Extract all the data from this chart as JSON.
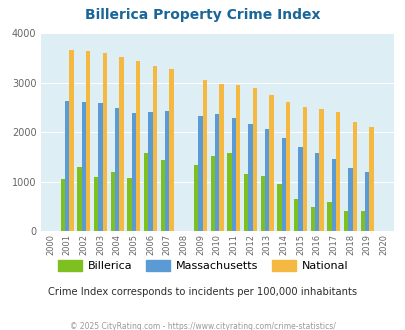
{
  "title": "Billerica Property Crime Index",
  "subtitle": "Crime Index corresponds to incidents per 100,000 inhabitants",
  "copyright": "© 2025 CityRating.com - https://www.cityrating.com/crime-statistics/",
  "years": [
    "2000",
    "2001",
    "2002",
    "2003",
    "2004",
    "2005",
    "2006",
    "2007",
    "2008",
    "2009",
    "2010",
    "2011",
    "2012",
    "2013",
    "2014",
    "2015",
    "2016",
    "2017",
    "2018",
    "2019",
    "2020"
  ],
  "billerica": [
    0,
    1050,
    1300,
    1100,
    1200,
    1080,
    1580,
    1440,
    0,
    1340,
    1510,
    1570,
    1160,
    1110,
    940,
    640,
    480,
    580,
    400,
    400,
    0
  ],
  "massachusetts": [
    0,
    2630,
    2600,
    2580,
    2490,
    2390,
    2410,
    2420,
    0,
    2330,
    2370,
    2280,
    2160,
    2060,
    1870,
    1700,
    1570,
    1460,
    1270,
    1200,
    0
  ],
  "national": [
    0,
    3660,
    3630,
    3600,
    3520,
    3430,
    3340,
    3280,
    0,
    3050,
    2960,
    2940,
    2880,
    2750,
    2600,
    2510,
    2460,
    2400,
    2200,
    2110,
    0
  ],
  "billerica_color": "#7dc020",
  "massachusetts_color": "#5b9bd5",
  "national_color": "#f5b942",
  "bg_color": "#deeef5",
  "ylim": [
    0,
    4000
  ],
  "yticks": [
    0,
    1000,
    2000,
    3000,
    4000
  ],
  "title_color": "#1a6699",
  "subtitle_color": "#2e2e2e",
  "copyright_color": "#999999"
}
